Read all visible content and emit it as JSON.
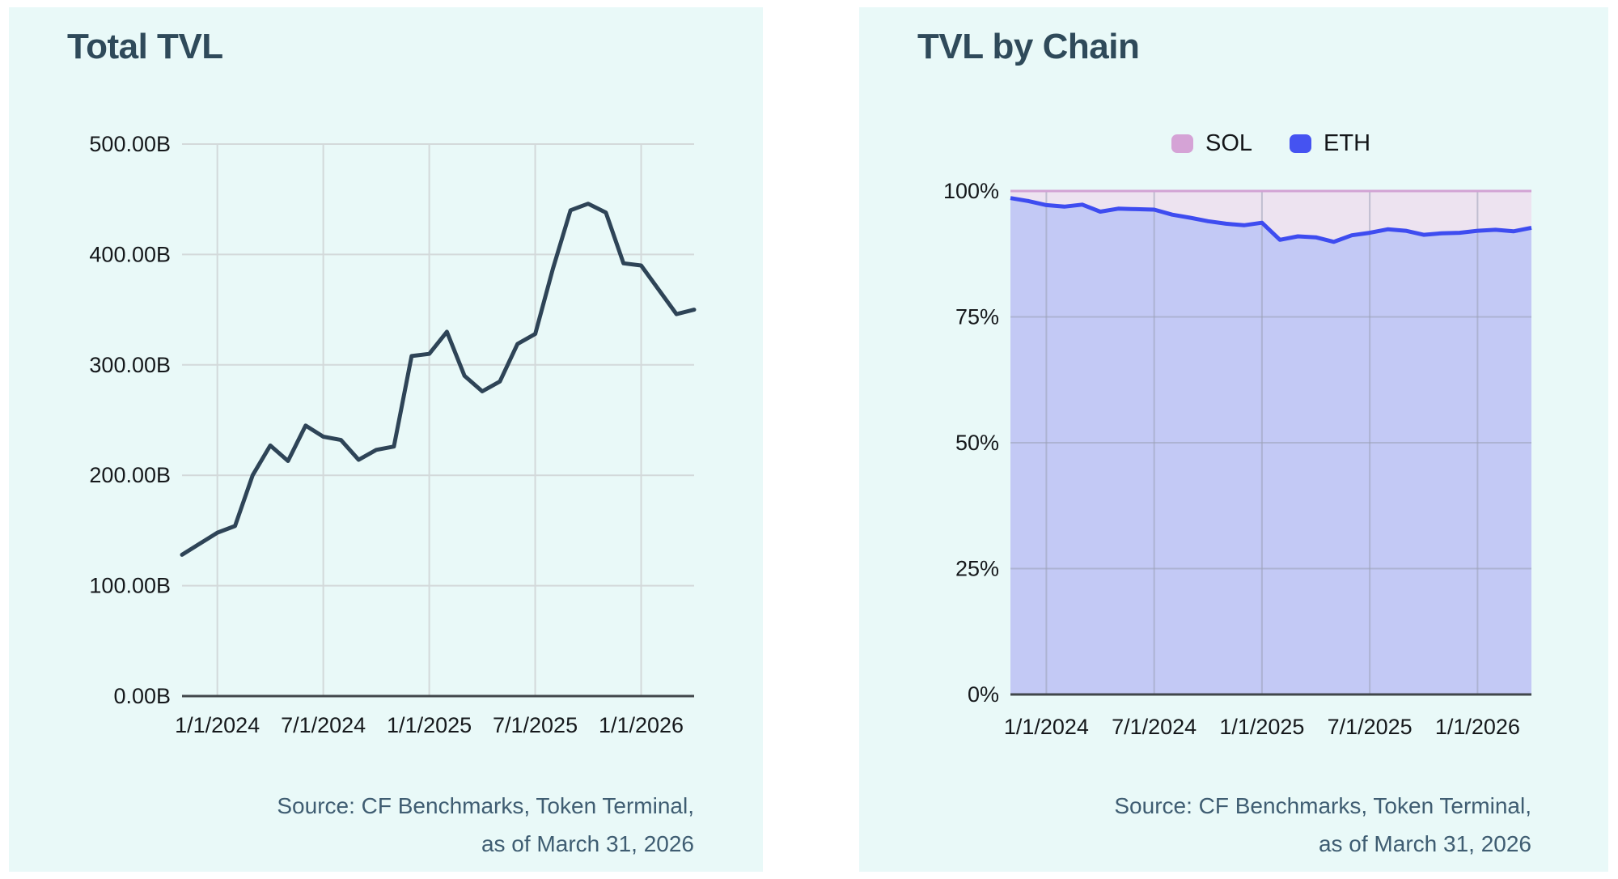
{
  "source": {
    "line1": "Source: CF Benchmarks, Token Terminal,",
    "line2": "as of March 31, 2026"
  },
  "colors": {
    "page_bg": "#ffffff",
    "panel_bg": "#e9f9f8",
    "title": "#2f4a5a",
    "axis_text": "#15181b",
    "source_text": "#3f5d72",
    "grid": "#d3d9da",
    "grid_on_fill": "#9aa0b6",
    "axis_line": "#41474b",
    "tvl_line": "#2e4457",
    "eth_line": "#3e4cf0",
    "eth_fill": "#c3c9f5",
    "sol_line": "#d2a3d4",
    "sol_fill": "#ede3f0",
    "legend_sol": "#d5a3d6",
    "legend_eth": "#4553f1"
  },
  "chart_data": [
    {
      "type": "line",
      "title": "Total TVL",
      "ylabel": "",
      "xlabel": "",
      "ylim": [
        0,
        500
      ],
      "grid": true,
      "x": [
        "11/1/2023",
        "12/1/2023",
        "1/1/2024",
        "2/1/2024",
        "3/1/2024",
        "4/1/2024",
        "5/1/2024",
        "6/1/2024",
        "7/1/2024",
        "8/1/2024",
        "9/1/2024",
        "10/1/2024",
        "11/1/2024",
        "12/1/2024",
        "1/1/2025",
        "2/1/2025",
        "3/1/2025",
        "4/1/2025",
        "5/1/2025",
        "6/1/2025",
        "7/1/2025",
        "8/1/2025",
        "9/1/2025",
        "10/1/2025",
        "11/1/2025",
        "12/1/2025",
        "1/1/2026",
        "2/1/2026",
        "3/1/2026",
        "3/31/2026"
      ],
      "values": [
        128,
        138,
        148,
        154,
        200,
        227,
        213,
        245,
        235,
        232,
        214,
        223,
        226,
        308,
        310,
        330,
        290,
        276,
        285,
        319,
        328,
        387,
        440,
        446,
        438,
        392,
        390,
        368,
        346,
        350
      ],
      "unit": "billions",
      "y_ticks": [
        {
          "value": 500,
          "label": "500.00B"
        },
        {
          "value": 400,
          "label": "400.00B"
        },
        {
          "value": 300,
          "label": "300.00B"
        },
        {
          "value": 200,
          "label": "200.00B"
        },
        {
          "value": 100,
          "label": "100.00B"
        },
        {
          "value": 0,
          "label": "0.00B"
        }
      ],
      "x_tick_indices": [
        2,
        8,
        14,
        20,
        26
      ],
      "x_tick_labels": [
        "1/1/2024",
        "7/1/2024",
        "1/1/2025",
        "7/1/2025",
        "1/1/2026"
      ]
    },
    {
      "type": "area",
      "title": "TVL by Chain",
      "subtype": "stacked-100-percent",
      "ylim": [
        0,
        100
      ],
      "grid": true,
      "legend_position": "top",
      "x": [
        "11/1/2023",
        "12/1/2023",
        "1/1/2024",
        "2/1/2024",
        "3/1/2024",
        "4/1/2024",
        "5/1/2024",
        "6/1/2024",
        "7/1/2024",
        "8/1/2024",
        "9/1/2024",
        "10/1/2024",
        "11/1/2024",
        "12/1/2024",
        "1/1/2025",
        "2/1/2025",
        "3/1/2025",
        "4/1/2025",
        "5/1/2025",
        "6/1/2025",
        "7/1/2025",
        "8/1/2025",
        "9/1/2025",
        "10/1/2025",
        "11/1/2025",
        "12/1/2025",
        "1/1/2026",
        "2/1/2026",
        "3/1/2026",
        "3/31/2026"
      ],
      "series": [
        {
          "name": "SOL",
          "values_pct": [
            1.4,
            2.0,
            2.8,
            3.1,
            2.7,
            4.1,
            3.5,
            3.6,
            3.7,
            4.7,
            5.3,
            6.0,
            6.5,
            6.8,
            6.3,
            9.7,
            9.0,
            9.2,
            10.1,
            8.8,
            8.3,
            7.6,
            7.9,
            8.7,
            8.4,
            8.3,
            7.9,
            7.7,
            8.0,
            7.3
          ]
        },
        {
          "name": "ETH",
          "values_pct": [
            98.6,
            98.0,
            97.2,
            96.9,
            97.3,
            95.9,
            96.5,
            96.4,
            96.3,
            95.3,
            94.7,
            94.0,
            93.5,
            93.2,
            93.7,
            90.3,
            91.0,
            90.8,
            89.9,
            91.2,
            91.7,
            92.4,
            92.1,
            91.3,
            91.6,
            91.7,
            92.1,
            92.3,
            92.0,
            92.7
          ]
        }
      ],
      "y_ticks": [
        {
          "value": 100,
          "label": "100%"
        },
        {
          "value": 75,
          "label": "75%"
        },
        {
          "value": 50,
          "label": "50%"
        },
        {
          "value": 25,
          "label": "25%"
        },
        {
          "value": 0,
          "label": "0%"
        }
      ],
      "x_tick_indices": [
        2,
        8,
        14,
        20,
        26
      ],
      "x_tick_labels": [
        "1/1/2024",
        "7/1/2024",
        "1/1/2025",
        "7/1/2025",
        "1/1/2026"
      ]
    }
  ]
}
